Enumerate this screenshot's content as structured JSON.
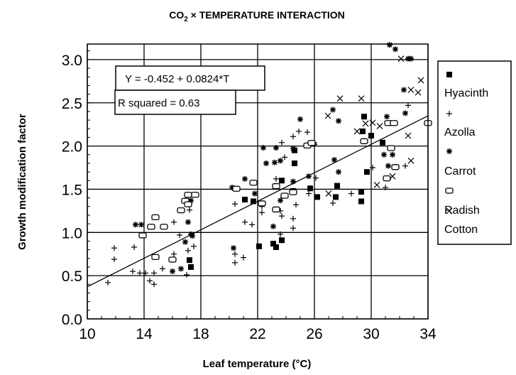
{
  "chart_data": {
    "type": "scatter",
    "title": "CO₂ × TEMPERATURE INTERACTION",
    "title_parts": {
      "main": "CO",
      "sub": "2",
      "rest": " × TEMPERATURE INTERACTION"
    },
    "xlabel": "Leaf temperature (°C)",
    "ylabel": "Growth modification factor",
    "xlim": [
      10,
      34
    ],
    "ylim": [
      0,
      3.2
    ],
    "xticks": [
      "10",
      "14",
      "18",
      "22",
      "26",
      "30",
      "34"
    ],
    "xtick_values": [
      10,
      14,
      18,
      22,
      26,
      30,
      34
    ],
    "yticks": [
      "0.0",
      "0.5",
      "1.0",
      "1.5",
      "2.0",
      "2.5",
      "3.0"
    ],
    "ytick_values": [
      0,
      0.5,
      1,
      1.5,
      2,
      2.5,
      3
    ],
    "grid": true,
    "legend_position": "right-outside",
    "regression": {
      "intercept": -0.452,
      "slope": 0.0824,
      "equation": "Y = -0.452 + 0.0824*T",
      "r_squared_label": "R squared = 0.63"
    },
    "series": [
      {
        "name": "Hyacinth",
        "marker": "filled-square",
        "points": [
          [
            17.2,
            0.68
          ],
          [
            17.3,
            0.6
          ],
          [
            21.1,
            1.38
          ],
          [
            21.7,
            1.36
          ],
          [
            22.1,
            0.84
          ],
          [
            23.1,
            0.87
          ],
          [
            23.3,
            0.83
          ],
          [
            23.7,
            0.91
          ],
          [
            23.7,
            1.6
          ],
          [
            24.6,
            1.95
          ],
          [
            24.6,
            1.8
          ],
          [
            24.5,
            1.48
          ],
          [
            25.7,
            1.51
          ],
          [
            26.2,
            1.41
          ],
          [
            27.6,
            1.54
          ],
          [
            27.5,
            1.41
          ],
          [
            29.3,
            1.47
          ],
          [
            29.3,
            1.36
          ],
          [
            29.5,
            2.34
          ],
          [
            29.4,
            2.17
          ],
          [
            30.0,
            2.12
          ],
          [
            29.7,
            1.7
          ],
          [
            30.8,
            2.04
          ]
        ]
      },
      {
        "name": "Azolla",
        "marker": "plus",
        "points": [
          [
            11.45,
            0.42
          ],
          [
            11.9,
            0.69
          ],
          [
            11.9,
            0.82
          ],
          [
            13.3,
            0.83
          ],
          [
            13.2,
            0.55
          ],
          [
            13.7,
            0.53
          ],
          [
            14.1,
            0.53
          ],
          [
            14.7,
            0.53
          ],
          [
            14.7,
            0.4
          ],
          [
            14.4,
            0.44
          ],
          [
            15.3,
            0.58
          ],
          [
            16.1,
            1.12
          ],
          [
            16.1,
            0.75
          ],
          [
            16.5,
            0.97
          ],
          [
            17.0,
            0.51
          ],
          [
            17.1,
            0.79
          ],
          [
            17.5,
            0.84
          ],
          [
            17.2,
            1.26
          ],
          [
            20.4,
            1.33
          ],
          [
            20.4,
            0.75
          ],
          [
            20.4,
            0.65
          ],
          [
            21.0,
            0.71
          ],
          [
            21.1,
            1.12
          ],
          [
            21.6,
            1.09
          ],
          [
            22.3,
            1.23
          ],
          [
            22.3,
            1.3
          ],
          [
            23.3,
            1.62
          ],
          [
            23.6,
            1.25
          ],
          [
            23.7,
            1.19
          ],
          [
            23.6,
            0.98
          ],
          [
            24.5,
            1.16
          ],
          [
            24.5,
            1.05
          ],
          [
            24.7,
            1.32
          ],
          [
            24.9,
            2.17
          ],
          [
            25.5,
            2.16
          ],
          [
            24.5,
            2.11
          ],
          [
            23.7,
            2.04
          ],
          [
            23.9,
            1.87
          ],
          [
            25.6,
            1.45
          ],
          [
            26.1,
            1.63
          ],
          [
            27.3,
            1.34
          ],
          [
            28.6,
            1.45
          ],
          [
            30.1,
            1.75
          ],
          [
            31.0,
            1.52
          ],
          [
            32.4,
            1.77
          ],
          [
            32.6,
            2.47
          ]
        ]
      },
      {
        "name": "Carrot",
        "marker": "asterisk",
        "points": [
          [
            13.4,
            1.09
          ],
          [
            13.8,
            1.09
          ],
          [
            16.0,
            0.55
          ],
          [
            16.6,
            0.58
          ],
          [
            17.1,
            1.12
          ],
          [
            16.9,
            0.89
          ],
          [
            17.3,
            0.98
          ],
          [
            17.4,
            0.96
          ],
          [
            17.3,
            1.37
          ],
          [
            20.3,
            0.82
          ],
          [
            20.2,
            1.52
          ],
          [
            21.1,
            1.62
          ],
          [
            21.8,
            1.45
          ],
          [
            22.4,
            1.98
          ],
          [
            22.6,
            1.8
          ],
          [
            23.2,
            1.81
          ],
          [
            23.6,
            1.83
          ],
          [
            23.3,
            1.98
          ],
          [
            23.1,
            1.07
          ],
          [
            23.6,
            1.37
          ],
          [
            24.5,
            1.97
          ],
          [
            24.5,
            1.59
          ],
          [
            25.0,
            2.31
          ],
          [
            25.6,
            1.65
          ],
          [
            26.0,
            2.02
          ],
          [
            27.4,
            1.84
          ],
          [
            27.3,
            2.42
          ],
          [
            27.7,
            2.29
          ],
          [
            27.7,
            1.7
          ],
          [
            30.9,
            1.9
          ],
          [
            31.5,
            1.9
          ],
          [
            31.2,
            1.77
          ],
          [
            31.1,
            2.34
          ],
          [
            31.3,
            3.17
          ],
          [
            31.7,
            3.12
          ],
          [
            32.3,
            2.65
          ],
          [
            32.4,
            2.38
          ],
          [
            32.6,
            3.01
          ],
          [
            32.8,
            3.01
          ]
        ]
      },
      {
        "name": "Radish",
        "marker": "open-square",
        "points": [
          [
            13.9,
            0.97
          ],
          [
            14.5,
            1.07
          ],
          [
            14.8,
            1.18
          ],
          [
            15.4,
            1.07
          ],
          [
            14.8,
            0.72
          ],
          [
            16.0,
            0.69
          ],
          [
            16.6,
            1.26
          ],
          [
            16.9,
            1.37
          ],
          [
            17.1,
            1.44
          ],
          [
            17.6,
            1.44
          ],
          [
            17.1,
            1.33
          ],
          [
            20.5,
            1.51
          ],
          [
            21.7,
            1.58
          ],
          [
            22.3,
            1.34
          ],
          [
            23.3,
            1.27
          ],
          [
            23.3,
            1.54
          ],
          [
            23.9,
            1.43
          ],
          [
            24.5,
            1.47
          ],
          [
            25.5,
            2.01
          ],
          [
            25.8,
            2.04
          ],
          [
            29.5,
            2.06
          ],
          [
            31.2,
            2.27
          ],
          [
            31.6,
            2.27
          ],
          [
            31.4,
            1.98
          ],
          [
            31.7,
            1.76
          ],
          [
            31.1,
            1.63
          ],
          [
            34.0,
            2.27
          ]
        ]
      },
      {
        "name": "Cotton",
        "marker": "cross",
        "points": [
          [
            26.95,
            2.35
          ],
          [
            27.8,
            2.55
          ],
          [
            29.3,
            2.55
          ],
          [
            29.0,
            2.17
          ],
          [
            29.6,
            2.26
          ],
          [
            30.6,
            2.23
          ],
          [
            30.4,
            1.55
          ],
          [
            27.0,
            1.45
          ],
          [
            31.5,
            1.65
          ],
          [
            32.8,
            1.83
          ],
          [
            32.6,
            2.12
          ],
          [
            33.5,
            2.76
          ],
          [
            33.3,
            2.62
          ],
          [
            32.8,
            2.65
          ],
          [
            32.1,
            3.01
          ],
          [
            30.1,
            2.27
          ]
        ]
      }
    ]
  }
}
